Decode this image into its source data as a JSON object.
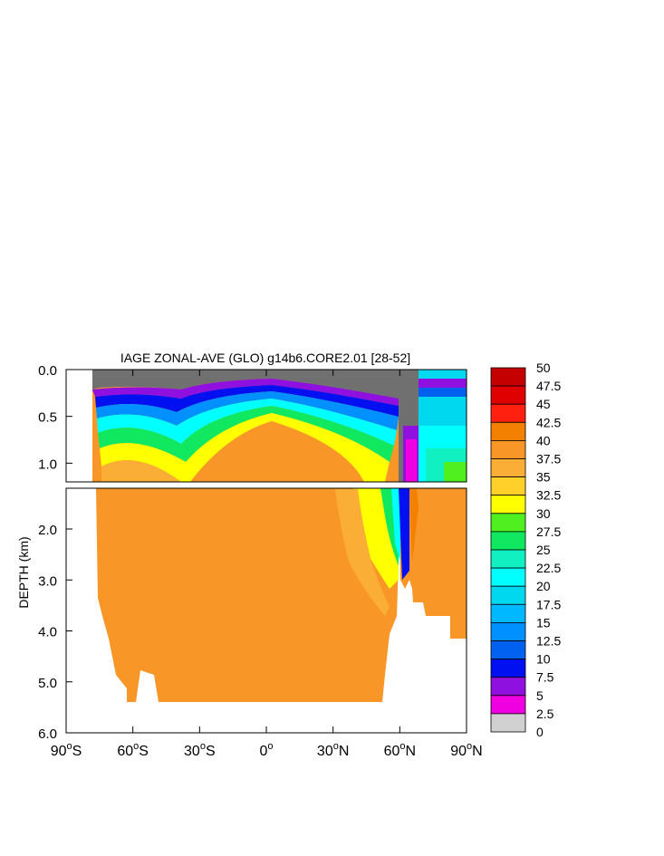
{
  "chart_data": {
    "type": "heatmap",
    "title": "IAGE ZONAL-AVE (GLO) g14b6.CORE2.01 [28-52]",
    "ylabel": "DEPTH (km)",
    "xlabel": "",
    "x_ticks": [
      {
        "value": -90,
        "label": "90°S",
        "num": "90",
        "hemi": "S"
      },
      {
        "value": -60,
        "label": "60°S",
        "num": "60",
        "hemi": "S"
      },
      {
        "value": -30,
        "label": "30°S",
        "num": "30",
        "hemi": "S"
      },
      {
        "value": 0,
        "label": "0°",
        "num": "0",
        "hemi": ""
      },
      {
        "value": 30,
        "label": "30°N",
        "num": "30",
        "hemi": "N"
      },
      {
        "value": 60,
        "label": "60°N",
        "num": "60",
        "hemi": "N"
      },
      {
        "value": 90,
        "label": "90°N",
        "num": "90",
        "hemi": "N"
      }
    ],
    "y_ticks_upper": [
      {
        "value": 0.0,
        "label": "0.0"
      },
      {
        "value": 0.5,
        "label": "0.5"
      },
      {
        "value": 1.0,
        "label": "1.0"
      }
    ],
    "y_ticks_lower": [
      {
        "value": 2.0,
        "label": "2.0"
      },
      {
        "value": 3.0,
        "label": "3.0"
      },
      {
        "value": 4.0,
        "label": "4.0"
      },
      {
        "value": 5.0,
        "label": "5.0"
      },
      {
        "value": 6.0,
        "label": "6.0"
      }
    ],
    "xlim": [
      -90,
      90
    ],
    "ylim_upper": [
      0,
      1.2
    ],
    "ylim_lower": [
      1.2,
      6.0
    ],
    "colorbar": {
      "labels": [
        "50",
        "47.5",
        "45",
        "42.5",
        "40",
        "37.5",
        "35",
        "32.5",
        "30",
        "27.5",
        "25",
        "22.5",
        "20",
        "17.5",
        "15",
        "12.5",
        "10",
        "7.5",
        "5",
        "2.5",
        "0"
      ],
      "colors": [
        "#c40000",
        "#e00000",
        "#ff2010",
        "#f48000",
        "#f89628",
        "#fbae35",
        "#ffd02a",
        "#ffff00",
        "#50f020",
        "#10e860",
        "#10f0c0",
        "#00ffff",
        "#00d8f0",
        "#00b8ff",
        "#0090ff",
        "#0060f0",
        "#0010f0",
        "#9010e0",
        "#f000e0",
        "#d0d0d0",
        "#707070"
      ]
    }
  }
}
